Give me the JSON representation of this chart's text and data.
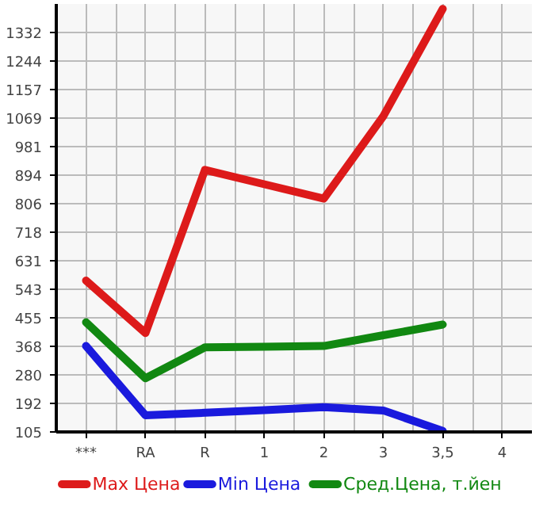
{
  "chart_data": {
    "type": "line",
    "categories": [
      "***",
      "RA",
      "R",
      "1",
      "2",
      "3",
      "3,5",
      "4"
    ],
    "series": [
      {
        "name": "Max Цена",
        "color": "#dd1a1a",
        "values": [
          570,
          409,
          910,
          866,
          822,
          1075,
          1405,
          null
        ]
      },
      {
        "name": "Min Цена",
        "color": "#1a1add",
        "values": [
          369,
          156,
          164,
          172,
          181,
          171,
          108,
          null
        ]
      },
      {
        "name": "Сред.Цена, т.йен",
        "color": "#118811",
        "values": [
          442,
          270,
          365,
          367,
          369,
          402,
          435,
          null
        ]
      }
    ],
    "ylim": [
      105,
      1420
    ],
    "yticks": [
      105,
      192,
      280,
      368,
      455,
      543,
      631,
      718,
      806,
      894,
      981,
      1069,
      1157,
      1244,
      1332
    ],
    "grid": true,
    "legend": "bottom",
    "line_style": "solid"
  }
}
